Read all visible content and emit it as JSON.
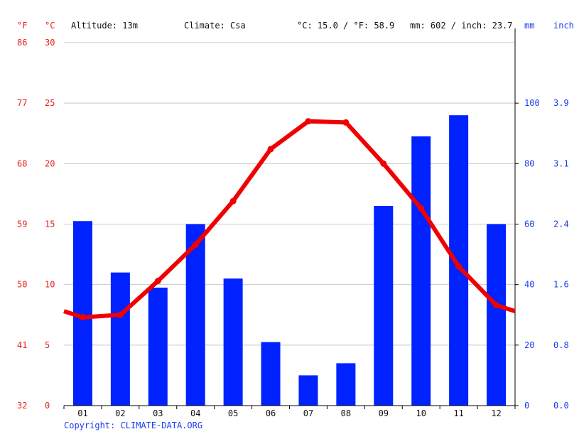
{
  "header": {
    "unit_f": "°F",
    "unit_c": "°C",
    "altitude": "Altitude: 13m",
    "climate": "Climate: Csa",
    "temp_summary": "°C: 15.0 / °F: 58.9",
    "precip_summary": "mm: 602 / inch: 23.7",
    "unit_mm": "mm",
    "unit_inch": "inch"
  },
  "copyright": "Copyright: CLIMATE-DATA.ORG",
  "colors": {
    "temperature": "#f00000",
    "precipitation": "#0022ff",
    "axis_red": "#e8231f",
    "axis_blue": "#1a3cf0"
  },
  "chart_data": {
    "type": "bar",
    "categories": [
      "01",
      "02",
      "03",
      "04",
      "05",
      "06",
      "07",
      "08",
      "09",
      "10",
      "11",
      "12"
    ],
    "series": [
      {
        "values": [
          61,
          44,
          39,
          60,
          42,
          21,
          10,
          14,
          66,
          89,
          96,
          60
        ]
      },
      {
        "values": [
          7.3,
          7.5,
          10.3,
          13.3,
          16.9,
          21.2,
          23.5,
          23.4,
          20.0,
          16.3,
          11.5,
          8.3
        ]
      }
    ],
    "y_left_celsius": {
      "ticks": [
        0,
        5,
        10,
        15,
        20,
        25,
        30
      ],
      "range": [
        0,
        30
      ]
    },
    "y_left_fahrenheit": {
      "ticks": [
        32,
        41,
        50,
        59,
        68,
        77,
        86
      ]
    },
    "y_right_mm": {
      "ticks": [
        0,
        20,
        40,
        60,
        80,
        100
      ],
      "range": [
        0,
        120
      ]
    },
    "y_right_inch": {
      "ticks": [
        "0.0",
        "0.8",
        "1.6",
        "2.4",
        "3.1",
        "3.9"
      ]
    },
    "grid": true
  }
}
